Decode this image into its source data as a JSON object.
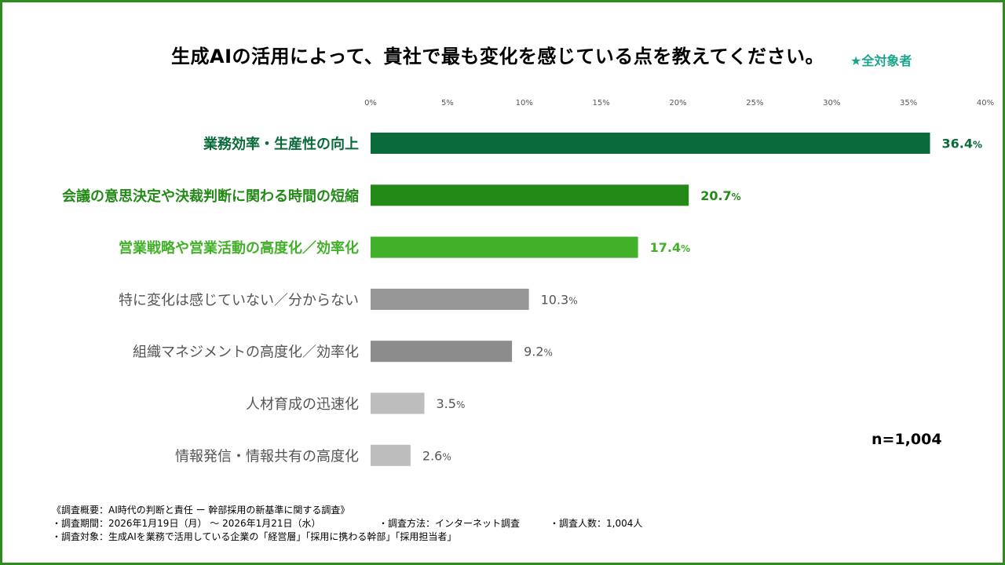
{
  "title": "生成AIの活用によって、貴社で最も変化を感じている点を教えてください。",
  "target_note": "★全対象者",
  "n_label": "n=1,004",
  "colors": {
    "frame": "#2e8b1e",
    "target_note": "#17a589"
  },
  "chart_data": {
    "type": "bar",
    "orientation": "horizontal",
    "xlim": [
      0,
      40
    ],
    "ticks": [
      "0%",
      "5%",
      "10%",
      "15%",
      "20%",
      "25%",
      "30%",
      "35%",
      "40%"
    ],
    "tick_values": [
      0,
      5,
      10,
      15,
      20,
      25,
      30,
      35,
      40
    ],
    "grid": false,
    "categories": [
      "業務効率・生産性の向上",
      "会議の意思決定や決裁判断に関わる時間の短縮",
      "営業戦略や営業活動の高度化／効率化",
      "特に変化は感じていない／分からない",
      "組織マネジメントの高度化／効率化",
      "人材育成の迅速化",
      "情報発信・情報共有の高度化"
    ],
    "values": [
      36.4,
      20.7,
      17.4,
      10.3,
      9.2,
      3.5,
      2.6
    ],
    "value_labels": [
      "36.4",
      "20.7",
      "17.4",
      "10.3",
      "9.2",
      "3.5",
      "2.6"
    ],
    "unit": "%",
    "bar_colors": [
      "#0a6a3a",
      "#238a17",
      "#43b02a",
      "#969696",
      "#8c8c8c",
      "#bdbdbd",
      "#bdbdbd"
    ],
    "label_colors": [
      "#0a6a3a",
      "#238a17",
      "#43b02a",
      "#555555",
      "#555555",
      "#555555",
      "#555555"
    ]
  },
  "notes": {
    "line1": "《調査概要：AI時代の判断と責任 ー 幹部採用の新基準に関する調査》",
    "line2a": "・調査期間：2026年1月19日（月）  〜 2026年1月21日（水）",
    "line2b": "・調査方法：インターネット調査",
    "line2c": "・調査人数：1,004人",
    "line3": "・調査対象：生成AIを業務で活用している企業の「経営層」「採用に携わる幹部」「採用担当者」"
  }
}
